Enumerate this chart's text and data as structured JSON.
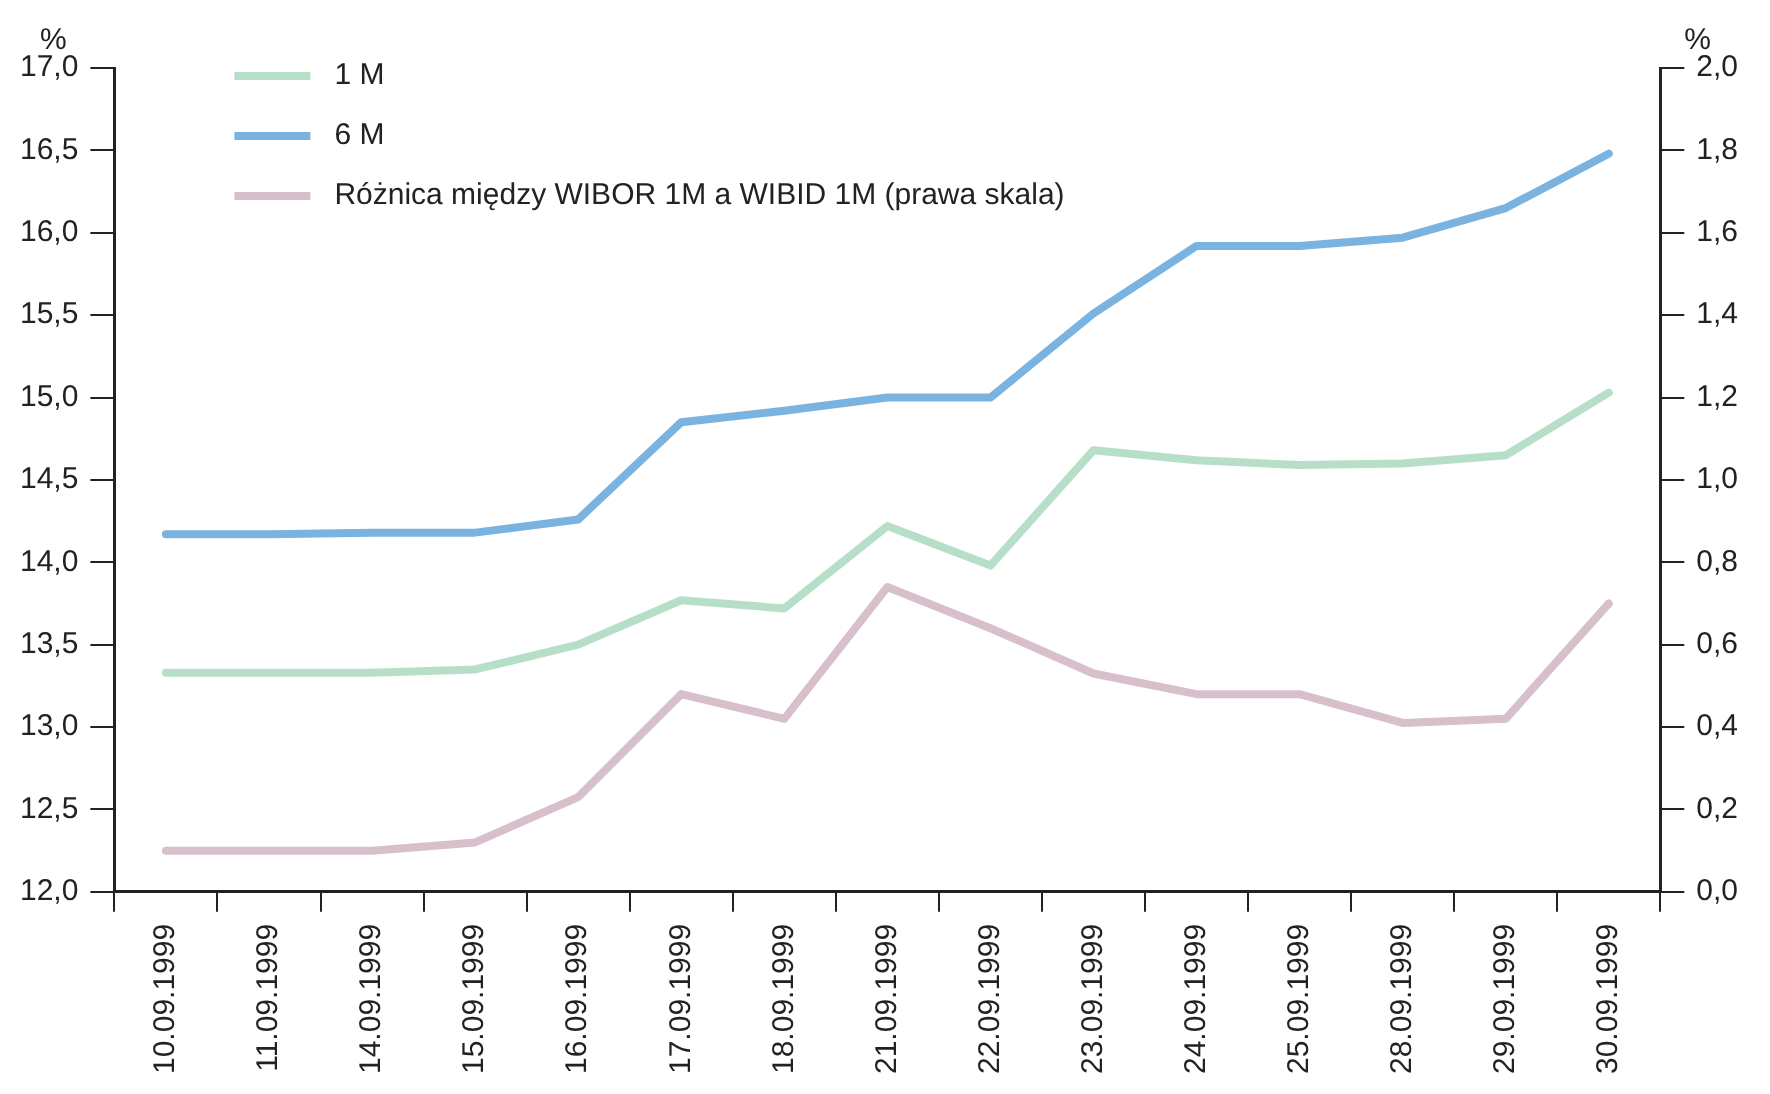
{
  "chart_data": {
    "type": "line",
    "ylabel": "%",
    "y2label": "%",
    "categories": [
      "10.09.1999",
      "11.09.1999",
      "14.09.1999",
      "15.09.1999",
      "16.09.1999",
      "17.09.1999",
      "18.09.1999",
      "21.09.1999",
      "22.09.1999",
      "23.09.1999",
      "24.09.1999",
      "25.09.1999",
      "28.09.1999",
      "29.09.1999",
      "30.09.1999"
    ],
    "series": [
      {
        "name": "1 M",
        "color": "#b7dfc8",
        "values": [
          13.33,
          13.33,
          13.33,
          13.35,
          13.5,
          13.77,
          13.72,
          14.22,
          13.98,
          14.68,
          14.62,
          14.59,
          14.6,
          14.65,
          15.03
        ]
      },
      {
        "name": "6 M",
        "color": "#7ab3e0",
        "values": [
          14.17,
          14.17,
          14.18,
          14.18,
          14.26,
          14.85,
          14.92,
          15.0,
          15.0,
          15.51,
          15.92,
          15.92,
          15.97,
          16.15,
          16.48
        ]
      },
      {
        "name": "Różnica między WIBOR 1M a WIBID 1M (prawa skala)",
        "color": "#d7bfcc",
        "axis": "y2",
        "values": [
          0.1,
          0.1,
          0.1,
          0.12,
          0.23,
          0.48,
          0.42,
          0.74,
          0.64,
          0.53,
          0.48,
          0.48,
          0.41,
          0.42,
          0.7
        ]
      }
    ],
    "ylim": [
      12,
      17
    ],
    "yticks": [
      {
        "value": 12,
        "label": "12,0"
      },
      {
        "value": 12.5,
        "label": "12,5"
      },
      {
        "value": 13,
        "label": "13,0"
      },
      {
        "value": 13.5,
        "label": "13,5"
      },
      {
        "value": 14,
        "label": "14,0"
      },
      {
        "value": 14.5,
        "label": "14,5"
      },
      {
        "value": 15,
        "label": "15,0"
      },
      {
        "value": 15.5,
        "label": "15,5"
      },
      {
        "value": 16,
        "label": "16,0"
      },
      {
        "value": 16.5,
        "label": "16,5"
      },
      {
        "value": 17,
        "label": "17,0"
      }
    ],
    "y2lim": [
      0,
      2
    ],
    "y2ticks": [
      {
        "value": 0,
        "label": "0,0"
      },
      {
        "value": 0.2,
        "label": "0,2"
      },
      {
        "value": 0.4,
        "label": "0,4"
      },
      {
        "value": 0.6,
        "label": "0,6"
      },
      {
        "value": 0.8,
        "label": "0,8"
      },
      {
        "value": 1,
        "label": "1,0"
      },
      {
        "value": 1.2,
        "label": "1,2"
      },
      {
        "value": 1.4,
        "label": "1,4"
      },
      {
        "value": 1.6,
        "label": "1,6"
      },
      {
        "value": 1.8,
        "label": "1,8"
      },
      {
        "value": 2,
        "label": "2,0"
      }
    ],
    "grid": false,
    "legend": "top left",
    "marker": "none",
    "line_style": "solid"
  }
}
